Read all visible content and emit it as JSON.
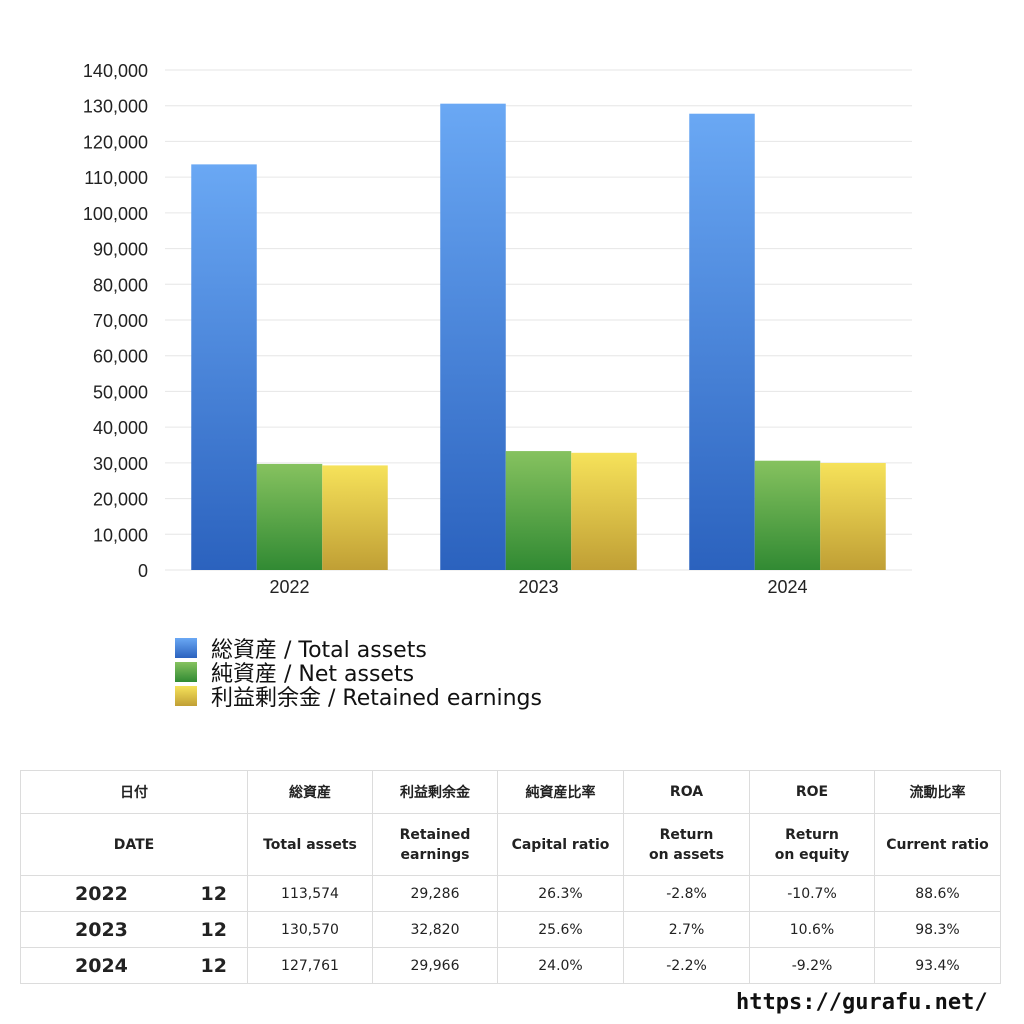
{
  "chart_data": {
    "type": "bar",
    "categories": [
      "2022",
      "2023",
      "2024"
    ],
    "series": [
      {
        "name": "総資産 / Total assets",
        "values": [
          113574,
          130570,
          127761
        ]
      },
      {
        "name": "純資産 / Net assets",
        "values": [
          29700,
          33300,
          30600
        ]
      },
      {
        "name": "利益剰余金 / Retained earnings",
        "values": [
          29286,
          32820,
          29966
        ]
      }
    ],
    "ylim": [
      0,
      140000
    ],
    "yticks": [
      "0",
      "10,000",
      "20,000",
      "30,000",
      "40,000",
      "50,000",
      "60,000",
      "70,000",
      "80,000",
      "90,000",
      "100,000",
      "110,000",
      "120,000",
      "130,000",
      "140,000"
    ],
    "grid": true,
    "legend_position": "bottom-left",
    "colors": [
      {
        "top": "#6aa8f4",
        "bottom": "#2b62be"
      },
      {
        "top": "#86c25f",
        "bottom": "#318a33"
      },
      {
        "top": "#f6e25a",
        "bottom": "#c09f35"
      }
    ]
  },
  "legend": [
    {
      "label": "総資産 / Total assets",
      "color": "#3d7fd6"
    },
    {
      "label": "純資産 / Net assets",
      "color": "#4fa544"
    },
    {
      "label": "利益剰余金 / Retained earnings",
      "color": "#e3c743"
    }
  ],
  "table": {
    "header_jp": {
      "date": "日付",
      "total": "総資産",
      "retained": "利益剰余金",
      "capital": "純資産比率",
      "roa": "ROA",
      "roe": "ROE",
      "current": "流動比率"
    },
    "header_en": {
      "date": "DATE",
      "total": "Total assets",
      "retained": "Retained earnings",
      "capital": "Capital ratio",
      "roa": "Return on assets",
      "roe": "Return on equity",
      "current": "Current ratio"
    },
    "rows": [
      {
        "year": "2022",
        "month": "12",
        "total": "113,574",
        "retained": "29,286",
        "capital": "26.3%",
        "roa": "-2.8%",
        "roe": "-10.7%",
        "current": "88.6%"
      },
      {
        "year": "2023",
        "month": "12",
        "total": "130,570",
        "retained": "32,820",
        "capital": "25.6%",
        "roa": "2.7%",
        "roe": "10.6%",
        "current": "98.3%"
      },
      {
        "year": "2024",
        "month": "12",
        "total": "127,761",
        "retained": "29,966",
        "capital": "24.0%",
        "roa": "-2.2%",
        "roe": "-9.2%",
        "current": "93.4%"
      }
    ]
  },
  "footer": {
    "url": "https://gurafu.net/"
  },
  "colors": {
    "negative": "#d9472b",
    "grid": "#e6e6e6"
  }
}
